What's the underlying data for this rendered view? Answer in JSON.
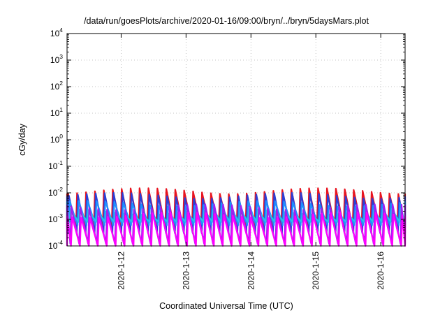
{
  "chart_data": {
    "type": "line",
    "title": "/data/run/goesPlots/archive/2020-01-16/09:00/bryn/../bryn/5daysMars.plot",
    "xlabel": "Coordinated Universal Time (UTC)",
    "ylabel": "cGy/day",
    "y_scale": "log",
    "ylim": [
      0.0001,
      10000
    ],
    "y_ticks": [
      {
        "value": 0.0001,
        "base": "10",
        "exp": "-4"
      },
      {
        "value": 0.001,
        "base": "10",
        "exp": "-3"
      },
      {
        "value": 0.01,
        "base": "10",
        "exp": "-2"
      },
      {
        "value": 0.1,
        "base": "10",
        "exp": "-1"
      },
      {
        "value": 1,
        "base": "10",
        "exp": "0"
      },
      {
        "value": 10,
        "base": "10",
        "exp": "1"
      },
      {
        "value": 100,
        "base": "10",
        "exp": "2"
      },
      {
        "value": 1000,
        "base": "10",
        "exp": "3"
      },
      {
        "value": 10000,
        "base": "10",
        "exp": "4"
      }
    ],
    "xlim": [
      "2020-01-11T04:00",
      "2020-01-16T09:00"
    ],
    "x_ticks": [
      "2020-1-12",
      "2020-1-13",
      "2020-1-14",
      "2020-1-15",
      "2020-1-16"
    ],
    "grid": true,
    "legend": "none",
    "series": [
      {
        "color": "#e8141f",
        "peak": 0.012,
        "trough": 0.0005
      },
      {
        "color": "#2a3fd6",
        "peak": 0.008,
        "trough": 0.0003
      },
      {
        "color": "#1e90ff",
        "peak": 0.004,
        "trough": 0.0006
      },
      {
        "color": "#27c4e6",
        "peak": 0.002,
        "trough": 0.0008
      },
      {
        "color": "#a020f0",
        "peak": 0.003,
        "trough": 0.00012
      },
      {
        "color": "#ff00ff",
        "peak": 0.0015,
        "trough": 0.0001
      }
    ],
    "sawtooth_period_hours": 3.3
  }
}
